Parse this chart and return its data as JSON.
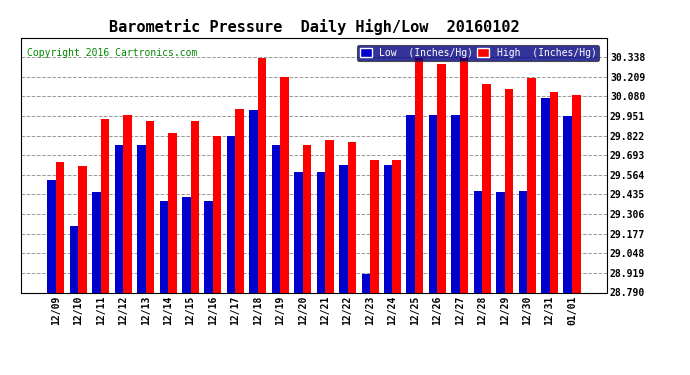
{
  "title": "Barometric Pressure  Daily High/Low  20160102",
  "copyright": "Copyright 2016 Cartronics.com",
  "categories": [
    "12/09",
    "12/10",
    "12/11",
    "12/12",
    "12/13",
    "12/14",
    "12/15",
    "12/16",
    "12/17",
    "12/18",
    "12/19",
    "12/20",
    "12/21",
    "12/22",
    "12/23",
    "12/24",
    "12/25",
    "12/26",
    "12/27",
    "12/28",
    "12/29",
    "12/30",
    "12/31",
    "01/01"
  ],
  "low_values": [
    29.53,
    29.23,
    29.45,
    29.76,
    29.76,
    29.39,
    29.42,
    29.39,
    29.82,
    29.99,
    29.76,
    29.58,
    29.58,
    29.63,
    28.91,
    29.63,
    29.96,
    29.96,
    29.96,
    29.46,
    29.45,
    29.46,
    30.07,
    29.95
  ],
  "high_values": [
    29.65,
    29.62,
    29.93,
    29.96,
    29.92,
    29.84,
    29.92,
    29.82,
    30.0,
    30.33,
    30.21,
    29.76,
    29.79,
    29.78,
    29.66,
    29.66,
    30.33,
    30.29,
    30.33,
    30.16,
    30.13,
    30.2,
    30.11,
    30.09
  ],
  "low_color": "#0000cc",
  "high_color": "#ff0000",
  "ylim_min": 28.79,
  "ylim_max": 30.467,
  "yticks": [
    28.79,
    28.919,
    29.048,
    29.177,
    29.306,
    29.435,
    29.564,
    29.693,
    29.822,
    29.951,
    30.08,
    30.209,
    30.338
  ],
  "bg_color": "#ffffff",
  "plot_bg_color": "#ffffff",
  "grid_color": "#999999",
  "title_fontsize": 11,
  "tick_fontsize": 7,
  "copyright_fontsize": 7,
  "legend_low_label": "Low  (Inches/Hg)",
  "legend_high_label": "High  (Inches/Hg)"
}
